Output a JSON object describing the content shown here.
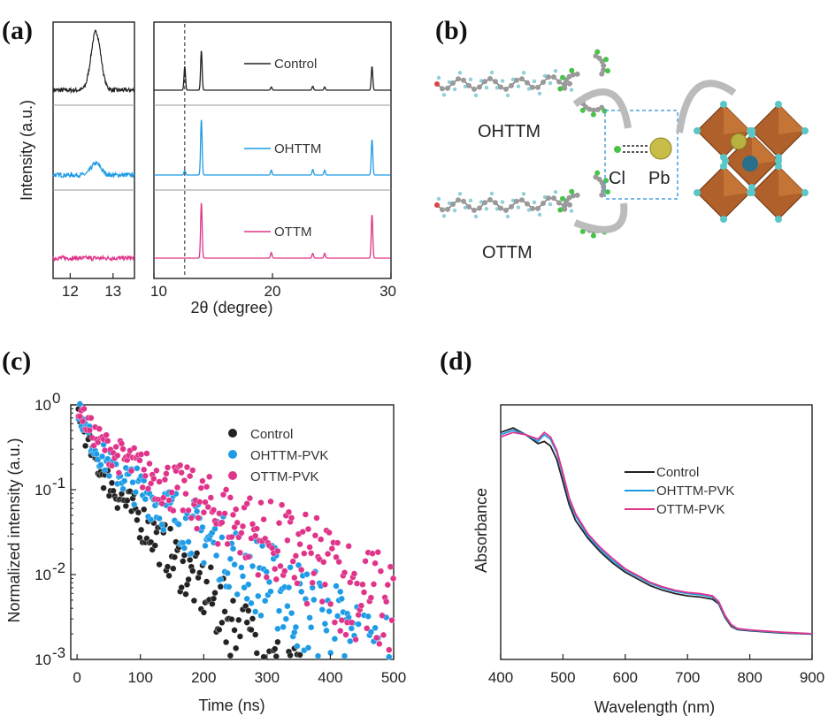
{
  "figure": {
    "panel_labels": [
      "(a)",
      "(b)",
      "(c)",
      "(d)"
    ],
    "panel_b": {
      "molecule_top": "OHTTM",
      "molecule_bottom": "OTTM",
      "interaction_left": "Cl",
      "interaction_right": "Pb"
    }
  },
  "colors": {
    "control": "#222222",
    "ohttm": "#1e9be6",
    "ottm": "#e0338a",
    "octahedron": "#b0602a",
    "halide": "#59c7c7",
    "pb": "#b8b040"
  },
  "chart_data": [
    {
      "type": "line",
      "panel": "(a)",
      "ylabel": "Intensity (a.u.)",
      "xlabel": "2θ (degree)",
      "zoom_x_ticks": [
        "12",
        "13"
      ],
      "zoom_xlim": [
        11.6,
        13.5
      ],
      "main_x_ticks": [
        "10",
        "20",
        "30"
      ],
      "main_xlim": [
        10,
        30
      ],
      "dashed_line_x": 12.6,
      "series": [
        {
          "name": "Control",
          "peaks": [
            {
              "x": 12.6,
              "h": 0.6
            },
            {
              "x": 14.0,
              "h": 1.0
            },
            {
              "x": 19.9,
              "h": 0.08
            },
            {
              "x": 23.4,
              "h": 0.1
            },
            {
              "x": 24.4,
              "h": 0.08
            },
            {
              "x": 28.4,
              "h": 0.6
            }
          ]
        },
        {
          "name": "OHTTM",
          "peaks": [
            {
              "x": 12.6,
              "h": 0.12
            },
            {
              "x": 14.0,
              "h": 1.4
            },
            {
              "x": 19.9,
              "h": 0.12
            },
            {
              "x": 23.4,
              "h": 0.14
            },
            {
              "x": 24.4,
              "h": 0.12
            },
            {
              "x": 28.4,
              "h": 0.9
            }
          ]
        },
        {
          "name": "OTTM",
          "peaks": [
            {
              "x": 12.6,
              "h": 0.0
            },
            {
              "x": 14.0,
              "h": 1.4
            },
            {
              "x": 19.9,
              "h": 0.14
            },
            {
              "x": 23.4,
              "h": 0.12
            },
            {
              "x": 24.4,
              "h": 0.12
            },
            {
              "x": 28.4,
              "h": 1.1
            }
          ]
        }
      ]
    },
    {
      "type": "scatter",
      "panel": "(c)",
      "xlabel": "Time (ns)",
      "ylabel": "Normalized intensity (a.u.)",
      "xlim": [
        -10,
        500
      ],
      "ylim_log10": [
        -3,
        0
      ],
      "x_ticks": [
        "0",
        "100",
        "200",
        "300",
        "400",
        "500"
      ],
      "y_ticks": [
        {
          "base": "10",
          "exp": "0"
        },
        {
          "base": "10",
          "exp": "-1"
        },
        {
          "base": "10",
          "exp": "-2"
        },
        {
          "base": "10",
          "exp": "-3"
        }
      ],
      "y_scale": "log",
      "legend_position": "top-right",
      "series": [
        {
          "name": "Control",
          "decay": {
            "A1": 0.7,
            "tau1_ns": 11,
            "A2": 0.3,
            "tau2_ns": 52
          },
          "approx_points": [
            [
              0,
              1.0
            ],
            [
              50,
              0.04
            ],
            [
              100,
              0.02
            ],
            [
              150,
              0.01
            ],
            [
              200,
              0.006
            ],
            [
              250,
              0.004
            ],
            [
              300,
              0.002
            ]
          ]
        },
        {
          "name": "OHTTM-PVK",
          "decay": {
            "A1": 0.65,
            "tau1_ns": 13,
            "A2": 0.35,
            "tau2_ns": 80
          },
          "approx_points": [
            [
              0,
              1.0
            ],
            [
              50,
              0.07
            ],
            [
              100,
              0.035
            ],
            [
              150,
              0.022
            ],
            [
              200,
              0.014
            ],
            [
              300,
              0.006
            ],
            [
              400,
              0.003
            ],
            [
              500,
              0.0015
            ]
          ]
        },
        {
          "name": "OTTM-PVK",
          "decay": {
            "A1": 0.55,
            "tau1_ns": 16,
            "A2": 0.45,
            "tau2_ns": 105
          },
          "approx_points": [
            [
              0,
              1.0
            ],
            [
              50,
              0.12
            ],
            [
              100,
              0.07
            ],
            [
              150,
              0.045
            ],
            [
              200,
              0.03
            ],
            [
              300,
              0.014
            ],
            [
              400,
              0.008
            ],
            [
              500,
              0.005
            ]
          ]
        }
      ]
    },
    {
      "type": "line",
      "panel": "(d)",
      "xlabel": "Wavelength (nm)",
      "ylabel": "Absorbance",
      "xlim": [
        400,
        900
      ],
      "x_ticks": [
        "400",
        "500",
        "600",
        "700",
        "800",
        "900"
      ],
      "legend_position": "center-right",
      "series": [
        {
          "name": "Control",
          "x": [
            400,
            420,
            440,
            460,
            470,
            480,
            490,
            500,
            510,
            520,
            540,
            560,
            580,
            600,
            620,
            640,
            660,
            680,
            700,
            720,
            740,
            750,
            760,
            770,
            780,
            800,
            850,
            900
          ],
          "y": [
            0.96,
            0.98,
            0.95,
            0.91,
            0.92,
            0.9,
            0.84,
            0.74,
            0.64,
            0.57,
            0.49,
            0.43,
            0.38,
            0.34,
            0.31,
            0.28,
            0.26,
            0.245,
            0.235,
            0.23,
            0.22,
            0.2,
            0.14,
            0.1,
            0.085,
            0.08,
            0.07,
            0.065
          ]
        },
        {
          "name": "OHTTM-PVK",
          "x": [
            400,
            420,
            440,
            460,
            470,
            480,
            490,
            500,
            510,
            520,
            540,
            560,
            580,
            600,
            620,
            640,
            660,
            680,
            700,
            720,
            740,
            750,
            760,
            770,
            780,
            800,
            850,
            900
          ],
          "y": [
            0.95,
            0.97,
            0.95,
            0.92,
            0.95,
            0.93,
            0.87,
            0.77,
            0.66,
            0.59,
            0.5,
            0.44,
            0.39,
            0.35,
            0.32,
            0.29,
            0.27,
            0.255,
            0.245,
            0.24,
            0.23,
            0.205,
            0.145,
            0.105,
            0.088,
            0.082,
            0.072,
            0.066
          ]
        },
        {
          "name": "OTTM-PVK",
          "x": [
            400,
            420,
            440,
            460,
            470,
            480,
            490,
            500,
            510,
            520,
            540,
            560,
            580,
            600,
            620,
            640,
            660,
            680,
            700,
            720,
            740,
            750,
            760,
            770,
            780,
            800,
            850,
            900
          ],
          "y": [
            0.94,
            0.96,
            0.95,
            0.93,
            0.96,
            0.94,
            0.88,
            0.78,
            0.67,
            0.6,
            0.51,
            0.45,
            0.4,
            0.355,
            0.325,
            0.295,
            0.275,
            0.26,
            0.25,
            0.245,
            0.235,
            0.21,
            0.15,
            0.108,
            0.09,
            0.084,
            0.074,
            0.067
          ]
        }
      ]
    }
  ]
}
